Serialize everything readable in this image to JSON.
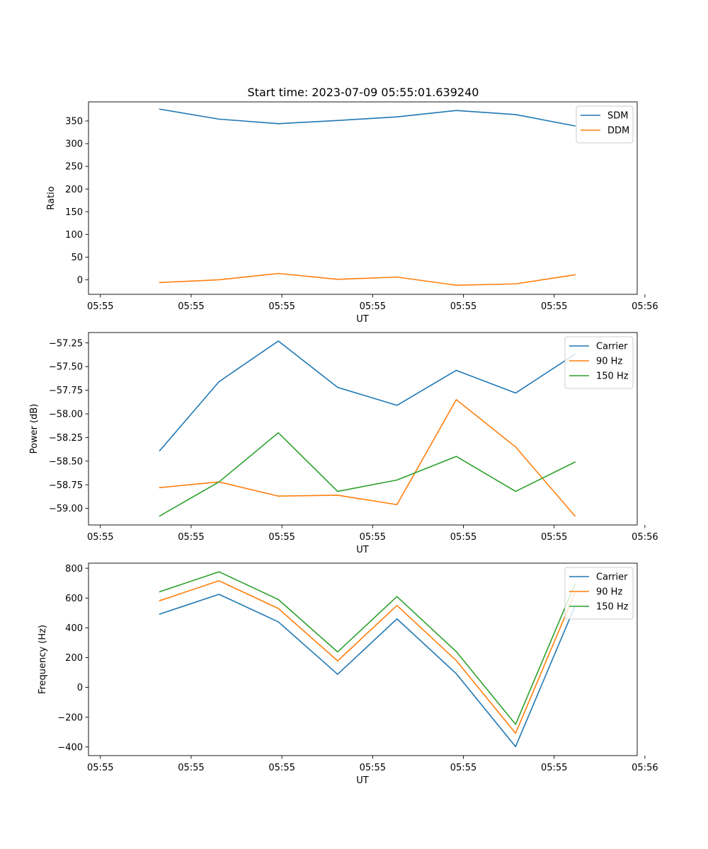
{
  "title": "Start time: 2023-07-09 05:55:01.639240",
  "colors": {
    "blue": "#1f77b4",
    "orange": "#ff7f0e",
    "green": "#2ca02c"
  },
  "chart_data": [
    {
      "type": "line",
      "xlabel": "UT",
      "ylabel": "Ratio",
      "x": [
        1,
        2,
        3,
        4,
        5,
        6,
        7,
        8
      ],
      "xlim": [
        -0.2,
        9.05
      ],
      "xticks": [
        0,
        1.53,
        3.06,
        4.59,
        6.12,
        7.65,
        9.18
      ],
      "xticklabels": [
        "05:55",
        "05:55",
        "05:55",
        "05:55",
        "05:55",
        "05:55",
        "05:56"
      ],
      "ylim": [
        -32,
        392
      ],
      "yticks": [
        0,
        50,
        100,
        150,
        200,
        250,
        300,
        350
      ],
      "yticklabels": [
        "0",
        "50",
        "100",
        "150",
        "200",
        "250",
        "300",
        "350"
      ],
      "legend": "top-right",
      "series": [
        {
          "name": "SDM",
          "color": "#1f77b4",
          "values": [
            376,
            354,
            344,
            351,
            359,
            373,
            364,
            339
          ]
        },
        {
          "name": "DDM",
          "color": "#ff7f0e",
          "values": [
            -6,
            0,
            14,
            1,
            6,
            -12,
            -9,
            11
          ]
        }
      ]
    },
    {
      "type": "line",
      "xlabel": "UT",
      "ylabel": "Power (dB)",
      "x": [
        1,
        2,
        3,
        4,
        5,
        6,
        7,
        8
      ],
      "xlim": [
        -0.2,
        9.05
      ],
      "xticks": [
        0,
        1.53,
        3.06,
        4.59,
        6.12,
        7.65,
        9.18
      ],
      "xticklabels": [
        "05:55",
        "05:55",
        "05:55",
        "05:55",
        "05:55",
        "05:55",
        "05:56"
      ],
      "ylim": [
        -59.175,
        -57.14
      ],
      "yticks": [
        -59.0,
        -58.75,
        -58.5,
        -58.25,
        -58.0,
        -57.75,
        -57.5,
        -57.25
      ],
      "yticklabels": [
        "−59.00",
        "−58.75",
        "−58.50",
        "−58.25",
        "−58.00",
        "−57.75",
        "−57.50",
        "−57.25"
      ],
      "legend": "top-right",
      "series": [
        {
          "name": "Carrier",
          "color": "#1f77b4",
          "values": [
            -58.39,
            -57.66,
            -57.23,
            -57.72,
            -57.91,
            -57.54,
            -57.78,
            -57.37
          ]
        },
        {
          "name": "90 Hz",
          "color": "#ff7f0e",
          "values": [
            -58.78,
            -58.72,
            -58.87,
            -58.86,
            -58.96,
            -57.85,
            -58.35,
            -59.08
          ]
        },
        {
          "name": "150 Hz",
          "color": "#2ca02c",
          "values": [
            -59.08,
            -58.72,
            -58.2,
            -58.82,
            -58.7,
            -58.45,
            -58.82,
            -58.51
          ]
        }
      ]
    },
    {
      "type": "line",
      "xlabel": "UT",
      "ylabel": "Frequency (Hz)",
      "x": [
        1,
        2,
        3,
        4,
        5,
        6,
        7,
        8
      ],
      "xlim": [
        -0.2,
        9.05
      ],
      "xticks": [
        0,
        1.53,
        3.06,
        4.59,
        6.12,
        7.65,
        9.18
      ],
      "xticklabels": [
        "05:55",
        "05:55",
        "05:55",
        "05:55",
        "05:55",
        "05:55",
        "05:56"
      ],
      "ylim": [
        -458,
        834
      ],
      "yticks": [
        -400,
        -200,
        0,
        200,
        400,
        600,
        800
      ],
      "yticklabels": [
        "−400",
        "−200",
        "0",
        "200",
        "400",
        "600",
        "800"
      ],
      "legend": "top-right",
      "series": [
        {
          "name": "Carrier",
          "color": "#1f77b4",
          "values": [
            492,
            625,
            440,
            88,
            460,
            92,
            -398,
            545
          ]
        },
        {
          "name": "90 Hz",
          "color": "#ff7f0e",
          "values": [
            582,
            716,
            530,
            178,
            550,
            180,
            -308,
            635
          ]
        },
        {
          "name": "150 Hz",
          "color": "#2ca02c",
          "values": [
            642,
            776,
            590,
            238,
            610,
            240,
            -248,
            693
          ]
        }
      ]
    }
  ]
}
